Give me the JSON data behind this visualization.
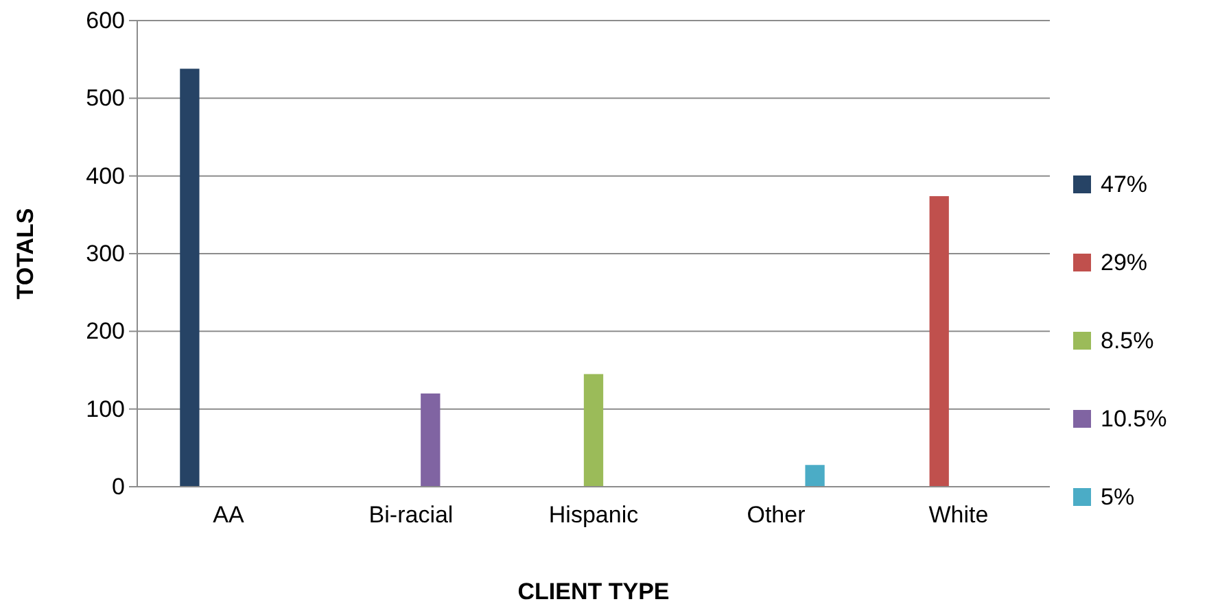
{
  "chart_data": {
    "type": "bar",
    "xlabel": "CLIENT TYPE",
    "ylabel": "TOTALS",
    "categories": [
      "AA",
      "Bi-racial",
      "Hispanic",
      "Other",
      "White"
    ],
    "series": [
      {
        "name": "47%",
        "color": "#264365",
        "values": [
          538,
          null,
          null,
          null,
          null
        ]
      },
      {
        "name": "29%",
        "color": "#c0504d",
        "values": [
          null,
          null,
          null,
          null,
          374
        ]
      },
      {
        "name": "8.5%",
        "color": "#9bbb59",
        "values": [
          null,
          null,
          145,
          null,
          null
        ]
      },
      {
        "name": "10.5%",
        "color": "#8064a2",
        "values": [
          null,
          120,
          null,
          null,
          null
        ]
      },
      {
        "name": "5%",
        "color": "#4bacc6",
        "values": [
          null,
          null,
          null,
          28,
          null
        ]
      }
    ],
    "ylim": [
      0,
      600
    ],
    "yticks": [
      0,
      100,
      200,
      300,
      400,
      500,
      600
    ],
    "grid": "y",
    "legend": "right"
  }
}
